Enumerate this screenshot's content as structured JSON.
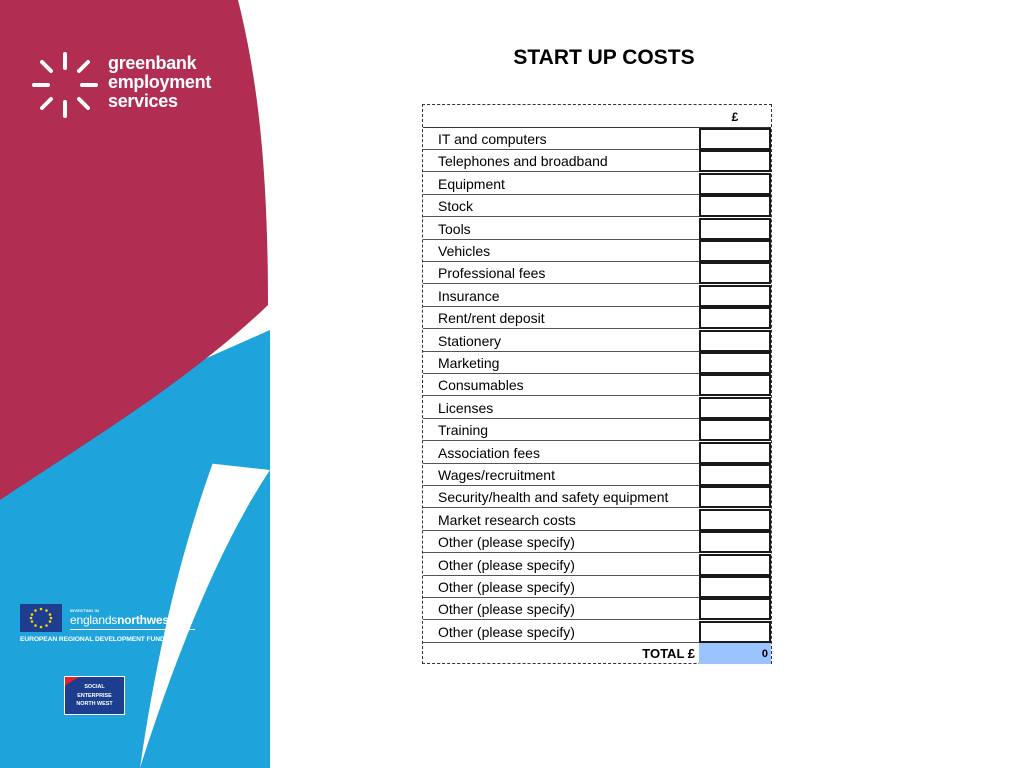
{
  "logo": {
    "line1": "greenbank",
    "line2": "employment",
    "line3": "services"
  },
  "erdf": {
    "small": "INVESTING IN",
    "brand_prefix": "englands",
    "brand_suffix": "northwest",
    "fund": "EUROPEAN REGIONAL DEVELOPMENT FUND"
  },
  "social_enterprise": {
    "line1": "SOCIAL",
    "line2": "ENTERPRISE",
    "line3": "NORTH WEST"
  },
  "page": {
    "title": "START UP COSTS"
  },
  "table": {
    "currency_header": "£",
    "items": [
      "IT and computers",
      "Telephones and broadband",
      "Equipment",
      "Stock",
      "Tools",
      "Vehicles",
      "Professional fees",
      "Insurance",
      "Rent/rent deposit",
      "Stationery",
      "Marketing",
      "Consumables",
      "Licenses",
      "Training",
      "Association fees",
      "Wages/recruitment",
      "Security/health and safety equipment",
      "Market research costs",
      "Other (please specify)",
      "Other (please specify)",
      "Other (please specify)",
      "Other (please specify)",
      "Other (please specify)"
    ],
    "total_label": "TOTAL £",
    "total_value": "0"
  },
  "colors": {
    "crimson": "#b22d52",
    "sky_blue": "#1ea3db",
    "total_fill": "#99c4ff"
  }
}
